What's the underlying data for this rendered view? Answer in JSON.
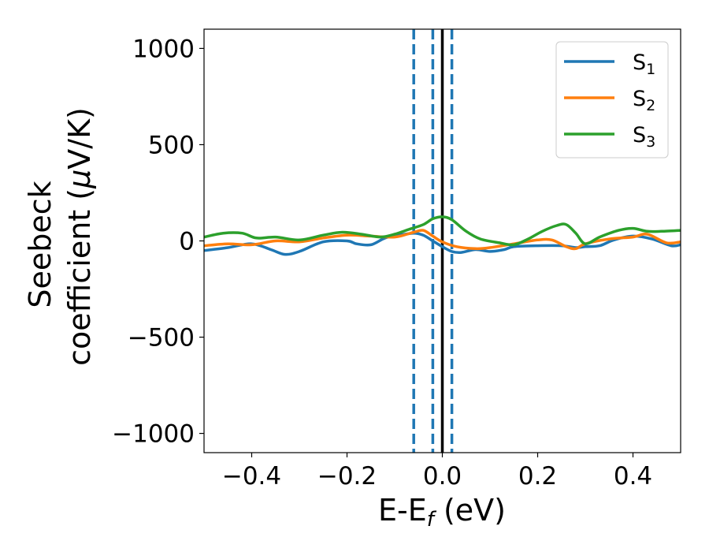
{
  "chart_data": {
    "type": "line",
    "title": "",
    "xlabel": {
      "main": "E-E",
      "sub": "f",
      "unit": " (eV)"
    },
    "ylabel": {
      "line1": "Seebeck",
      "line2a": "coefficient  (",
      "mu": "μ",
      "line2b": "V/K)"
    },
    "xlim": [
      -0.5,
      0.5
    ],
    "ylim": [
      -1100,
      1100
    ],
    "xticks": [
      -0.4,
      -0.2,
      0.0,
      0.2,
      0.4
    ],
    "xtick_labels": [
      "−0.4",
      "−0.2",
      "0.0",
      "0.2",
      "0.4"
    ],
    "yticks": [
      1000,
      500,
      0,
      -500,
      -1000
    ],
    "ytick_labels": [
      "1000",
      "500",
      "0",
      "−500",
      "−1000"
    ],
    "grid": false,
    "legend_position": "top-right",
    "vlines": [
      {
        "x": -0.06,
        "style": "dashed",
        "color": "#1f77b4"
      },
      {
        "x": -0.02,
        "style": "dashed",
        "color": "#1f77b4"
      },
      {
        "x": 0.02,
        "style": "dashed",
        "color": "#1f77b4"
      },
      {
        "x": 0.0,
        "style": "solid",
        "color": "#000000"
      }
    ],
    "series": [
      {
        "name_main": "S",
        "name_sub": "1",
        "color": "#1f77b4",
        "x": [
          -0.5,
          -0.45,
          -0.4,
          -0.36,
          -0.33,
          -0.3,
          -0.25,
          -0.2,
          -0.18,
          -0.15,
          -0.12,
          -0.09,
          -0.06,
          -0.04,
          -0.02,
          0.0,
          0.02,
          0.04,
          0.07,
          0.1,
          0.13,
          0.15,
          0.2,
          0.25,
          0.28,
          0.3,
          0.33,
          0.36,
          0.4,
          0.44,
          0.48,
          0.5
        ],
        "y": [
          -50,
          -35,
          -15,
          -45,
          -70,
          -55,
          -5,
          0,
          -15,
          -20,
          15,
          30,
          40,
          30,
          0,
          -30,
          -55,
          -60,
          -45,
          -55,
          -45,
          -30,
          -25,
          -25,
          -35,
          -30,
          -25,
          5,
          25,
          10,
          -25,
          -20
        ]
      },
      {
        "name_main": "S",
        "name_sub": "2",
        "color": "#ff7f0e",
        "x": [
          -0.5,
          -0.45,
          -0.4,
          -0.35,
          -0.3,
          -0.25,
          -0.2,
          -0.15,
          -0.1,
          -0.06,
          -0.04,
          -0.02,
          0.0,
          0.03,
          0.07,
          0.1,
          0.15,
          0.2,
          0.23,
          0.26,
          0.28,
          0.3,
          0.35,
          0.4,
          0.43,
          0.47,
          0.5
        ],
        "y": [
          -25,
          -15,
          -20,
          0,
          -5,
          15,
          30,
          25,
          20,
          45,
          55,
          25,
          -5,
          -30,
          -40,
          -35,
          -15,
          5,
          5,
          -30,
          -40,
          -15,
          10,
          20,
          35,
          -10,
          -5
        ]
      },
      {
        "name_main": "S",
        "name_sub": "3",
        "color": "#2ca02c",
        "x": [
          -0.5,
          -0.46,
          -0.42,
          -0.39,
          -0.35,
          -0.3,
          -0.25,
          -0.21,
          -0.17,
          -0.13,
          -0.1,
          -0.07,
          -0.04,
          -0.02,
          0.0,
          0.02,
          0.05,
          0.08,
          0.12,
          0.15,
          0.18,
          0.21,
          0.24,
          0.26,
          0.28,
          0.3,
          0.33,
          0.37,
          0.4,
          0.43,
          0.46,
          0.5
        ],
        "y": [
          20,
          40,
          40,
          15,
          20,
          5,
          30,
          45,
          35,
          20,
          35,
          60,
          85,
          115,
          125,
          110,
          50,
          10,
          -10,
          -20,
          10,
          50,
          80,
          85,
          40,
          -15,
          20,
          55,
          65,
          50,
          50,
          55
        ]
      }
    ]
  }
}
